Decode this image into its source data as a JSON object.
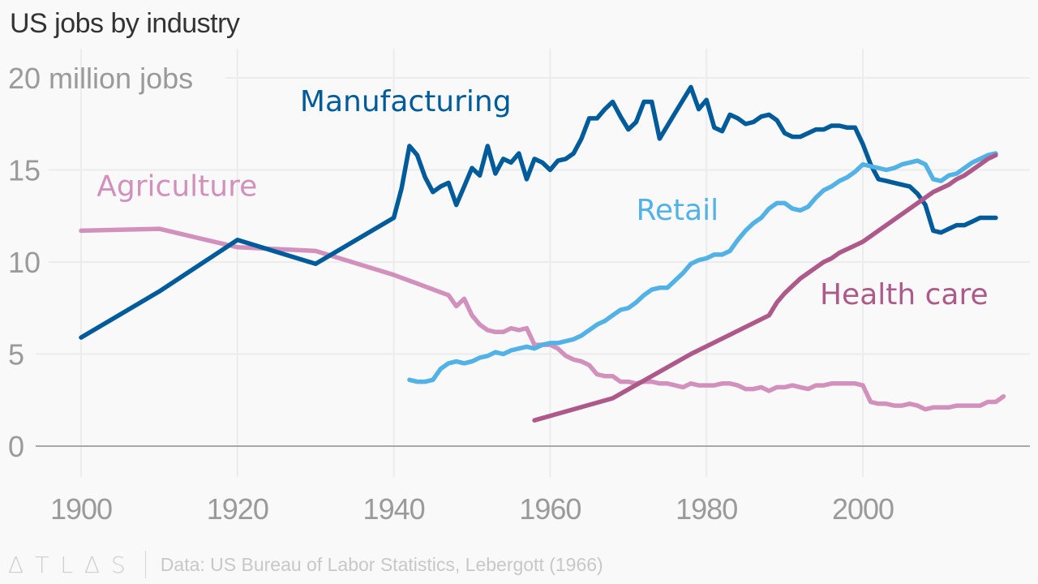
{
  "header": {
    "title": "US jobs by industry"
  },
  "footer": {
    "logo": "ΔTLΔS",
    "source": "Data: US Bureau of Labor Statistics, Lebergott (1966)"
  },
  "chart_data": {
    "type": "line",
    "title": "US jobs by industry",
    "xlabel": "",
    "ylabel": "million jobs",
    "xlim": [
      1899,
      2020
    ],
    "ylim": [
      0,
      20
    ],
    "grid": true,
    "legend": "inline-labels",
    "y_ticks": [
      {
        "value": 0,
        "label": "0"
      },
      {
        "value": 5,
        "label": "5"
      },
      {
        "value": 10,
        "label": "10"
      },
      {
        "value": 15,
        "label": "15"
      },
      {
        "value": 20,
        "label": "20 million jobs"
      }
    ],
    "x_ticks": [
      {
        "value": 1900,
        "label": "1900"
      },
      {
        "value": 1920,
        "label": "1920"
      },
      {
        "value": 1940,
        "label": "1940"
      },
      {
        "value": 1960,
        "label": "1960"
      },
      {
        "value": 1980,
        "label": "1980"
      },
      {
        "value": 2000,
        "label": "2000"
      }
    ],
    "series": [
      {
        "name": "Agriculture",
        "color": "#d291bc",
        "label": {
          "text": "Agriculture",
          "x": 1902,
          "y": 13.6
        },
        "points": [
          [
            1900,
            11.7
          ],
          [
            1910,
            11.8
          ],
          [
            1920,
            10.8
          ],
          [
            1930,
            10.6
          ],
          [
            1940,
            9.3
          ],
          [
            1947,
            8.2
          ],
          [
            1948,
            7.6
          ],
          [
            1949,
            8.0
          ],
          [
            1950,
            7.1
          ],
          [
            1951,
            6.6
          ],
          [
            1952,
            6.3
          ],
          [
            1953,
            6.2
          ],
          [
            1954,
            6.2
          ],
          [
            1955,
            6.4
          ],
          [
            1956,
            6.3
          ],
          [
            1957,
            6.4
          ],
          [
            1958,
            5.5
          ],
          [
            1959,
            5.5
          ],
          [
            1960,
            5.5
          ],
          [
            1961,
            5.3
          ],
          [
            1962,
            4.9
          ],
          [
            1963,
            4.7
          ],
          [
            1964,
            4.6
          ],
          [
            1965,
            4.4
          ],
          [
            1966,
            3.9
          ],
          [
            1967,
            3.8
          ],
          [
            1968,
            3.8
          ],
          [
            1969,
            3.5
          ],
          [
            1970,
            3.5
          ],
          [
            1971,
            3.4
          ],
          [
            1972,
            3.5
          ],
          [
            1973,
            3.5
          ],
          [
            1974,
            3.4
          ],
          [
            1975,
            3.4
          ],
          [
            1976,
            3.3
          ],
          [
            1977,
            3.2
          ],
          [
            1978,
            3.4
          ],
          [
            1979,
            3.3
          ],
          [
            1980,
            3.3
          ],
          [
            1981,
            3.3
          ],
          [
            1982,
            3.4
          ],
          [
            1983,
            3.4
          ],
          [
            1984,
            3.3
          ],
          [
            1985,
            3.1
          ],
          [
            1986,
            3.1
          ],
          [
            1987,
            3.2
          ],
          [
            1988,
            3.0
          ],
          [
            1989,
            3.2
          ],
          [
            1990,
            3.2
          ],
          [
            1991,
            3.3
          ],
          [
            1992,
            3.2
          ],
          [
            1993,
            3.1
          ],
          [
            1994,
            3.3
          ],
          [
            1995,
            3.3
          ],
          [
            1996,
            3.4
          ],
          [
            1997,
            3.4
          ],
          [
            1998,
            3.4
          ],
          [
            1999,
            3.4
          ],
          [
            2000,
            3.3
          ],
          [
            2001,
            2.4
          ],
          [
            2002,
            2.3
          ],
          [
            2003,
            2.3
          ],
          [
            2004,
            2.2
          ],
          [
            2005,
            2.2
          ],
          [
            2006,
            2.3
          ],
          [
            2007,
            2.2
          ],
          [
            2008,
            2.0
          ],
          [
            2009,
            2.1
          ],
          [
            2010,
            2.1
          ],
          [
            2011,
            2.1
          ],
          [
            2012,
            2.2
          ],
          [
            2013,
            2.2
          ],
          [
            2014,
            2.2
          ],
          [
            2015,
            2.2
          ],
          [
            2016,
            2.4
          ],
          [
            2017,
            2.4
          ],
          [
            2018,
            2.7
          ]
        ]
      },
      {
        "name": "Manufacturing",
        "color": "#005b9a",
        "label": {
          "text": "Manufacturing",
          "x": 1928,
          "y": 18.2
        },
        "points": [
          [
            1900,
            5.9
          ],
          [
            1910,
            8.4
          ],
          [
            1920,
            11.2
          ],
          [
            1930,
            9.9
          ],
          [
            1940,
            12.4
          ],
          [
            1941,
            14.0
          ],
          [
            1942,
            16.3
          ],
          [
            1943,
            15.8
          ],
          [
            1944,
            14.6
          ],
          [
            1945,
            13.8
          ],
          [
            1946,
            14.1
          ],
          [
            1947,
            14.3
          ],
          [
            1948,
            13.1
          ],
          [
            1949,
            14.1
          ],
          [
            1950,
            15.1
          ],
          [
            1951,
            14.7
          ],
          [
            1952,
            16.3
          ],
          [
            1953,
            14.8
          ],
          [
            1954,
            15.6
          ],
          [
            1955,
            15.4
          ],
          [
            1956,
            15.9
          ],
          [
            1957,
            14.5
          ],
          [
            1958,
            15.6
          ],
          [
            1959,
            15.4
          ],
          [
            1960,
            15.0
          ],
          [
            1961,
            15.5
          ],
          [
            1962,
            15.6
          ],
          [
            1963,
            15.9
          ],
          [
            1964,
            16.7
          ],
          [
            1965,
            17.8
          ],
          [
            1966,
            17.8
          ],
          [
            1967,
            18.3
          ],
          [
            1968,
            18.7
          ],
          [
            1969,
            17.9
          ],
          [
            1970,
            17.2
          ],
          [
            1971,
            17.6
          ],
          [
            1972,
            18.7
          ],
          [
            1973,
            18.7
          ],
          [
            1974,
            16.7
          ],
          [
            1975,
            17.4
          ],
          [
            1976,
            18.1
          ],
          [
            1977,
            18.8
          ],
          [
            1978,
            19.5
          ],
          [
            1979,
            18.3
          ],
          [
            1980,
            18.8
          ],
          [
            1981,
            17.3
          ],
          [
            1982,
            17.1
          ],
          [
            1983,
            18.0
          ],
          [
            1984,
            17.8
          ],
          [
            1985,
            17.5
          ],
          [
            1986,
            17.6
          ],
          [
            1987,
            17.9
          ],
          [
            1988,
            18.0
          ],
          [
            1989,
            17.7
          ],
          [
            1990,
            17.0
          ],
          [
            1991,
            16.8
          ],
          [
            1992,
            16.8
          ],
          [
            1993,
            17.0
          ],
          [
            1994,
            17.2
          ],
          [
            1995,
            17.2
          ],
          [
            1996,
            17.4
          ],
          [
            1997,
            17.4
          ],
          [
            1998,
            17.3
          ],
          [
            1999,
            17.3
          ],
          [
            2000,
            16.4
          ],
          [
            2001,
            15.3
          ],
          [
            2002,
            14.5
          ],
          [
            2003,
            14.4
          ],
          [
            2004,
            14.3
          ],
          [
            2005,
            14.2
          ],
          [
            2006,
            14.1
          ],
          [
            2007,
            13.7
          ],
          [
            2008,
            13.1
          ],
          [
            2009,
            11.7
          ],
          [
            2010,
            11.6
          ],
          [
            2011,
            11.8
          ],
          [
            2012,
            12.0
          ],
          [
            2013,
            12.0
          ],
          [
            2014,
            12.2
          ],
          [
            2015,
            12.4
          ],
          [
            2016,
            12.4
          ],
          [
            2017,
            12.4
          ]
        ]
      },
      {
        "name": "Retail",
        "color": "#53b2e5",
        "label": {
          "text": "Retail",
          "x": 1971,
          "y": 12.3
        },
        "points": [
          [
            1942,
            3.6
          ],
          [
            1943,
            3.5
          ],
          [
            1944,
            3.5
          ],
          [
            1945,
            3.6
          ],
          [
            1946,
            4.2
          ],
          [
            1947,
            4.5
          ],
          [
            1948,
            4.6
          ],
          [
            1949,
            4.5
          ],
          [
            1950,
            4.6
          ],
          [
            1951,
            4.8
          ],
          [
            1952,
            4.9
          ],
          [
            1953,
            5.1
          ],
          [
            1954,
            5.0
          ],
          [
            1955,
            5.2
          ],
          [
            1956,
            5.3
          ],
          [
            1957,
            5.4
          ],
          [
            1958,
            5.3
          ],
          [
            1959,
            5.5
          ],
          [
            1960,
            5.6
          ],
          [
            1961,
            5.6
          ],
          [
            1962,
            5.7
          ],
          [
            1963,
            5.8
          ],
          [
            1964,
            6.0
          ],
          [
            1965,
            6.3
          ],
          [
            1966,
            6.6
          ],
          [
            1967,
            6.8
          ],
          [
            1968,
            7.1
          ],
          [
            1969,
            7.4
          ],
          [
            1970,
            7.5
          ],
          [
            1971,
            7.8
          ],
          [
            1972,
            8.2
          ],
          [
            1973,
            8.5
          ],
          [
            1974,
            8.6
          ],
          [
            1975,
            8.6
          ],
          [
            1976,
            9.0
          ],
          [
            1977,
            9.4
          ],
          [
            1978,
            9.9
          ],
          [
            1979,
            10.1
          ],
          [
            1980,
            10.2
          ],
          [
            1981,
            10.4
          ],
          [
            1982,
            10.4
          ],
          [
            1983,
            10.6
          ],
          [
            1984,
            11.2
          ],
          [
            1985,
            11.7
          ],
          [
            1986,
            12.1
          ],
          [
            1987,
            12.4
          ],
          [
            1988,
            12.9
          ],
          [
            1989,
            13.2
          ],
          [
            1990,
            13.2
          ],
          [
            1991,
            12.9
          ],
          [
            1992,
            12.8
          ],
          [
            1993,
            13.0
          ],
          [
            1994,
            13.5
          ],
          [
            1995,
            13.9
          ],
          [
            1996,
            14.1
          ],
          [
            1997,
            14.4
          ],
          [
            1998,
            14.6
          ],
          [
            1999,
            14.9
          ],
          [
            2000,
            15.3
          ],
          [
            2001,
            15.2
          ],
          [
            2002,
            15.1
          ],
          [
            2003,
            15.0
          ],
          [
            2004,
            15.1
          ],
          [
            2005,
            15.3
          ],
          [
            2006,
            15.4
          ],
          [
            2007,
            15.5
          ],
          [
            2008,
            15.3
          ],
          [
            2009,
            14.5
          ],
          [
            2010,
            14.4
          ],
          [
            2011,
            14.7
          ],
          [
            2012,
            14.8
          ],
          [
            2013,
            15.1
          ],
          [
            2014,
            15.4
          ],
          [
            2015,
            15.6
          ],
          [
            2016,
            15.8
          ],
          [
            2017,
            15.9
          ]
        ]
      },
      {
        "name": "Health care",
        "color": "#ad5a8b",
        "label": {
          "text": "Health care",
          "x": 1994.5,
          "y": 7.7
        },
        "points": [
          [
            1958,
            1.4
          ],
          [
            1968,
            2.6
          ],
          [
            1978,
            5.0
          ],
          [
            1988,
            7.1
          ],
          [
            1989,
            7.8
          ],
          [
            1990,
            8.3
          ],
          [
            1991,
            8.7
          ],
          [
            1992,
            9.1
          ],
          [
            1993,
            9.4
          ],
          [
            1994,
            9.7
          ],
          [
            1995,
            10.0
          ],
          [
            1996,
            10.2
          ],
          [
            1997,
            10.5
          ],
          [
            1998,
            10.7
          ],
          [
            1999,
            10.9
          ],
          [
            2000,
            11.1
          ],
          [
            2001,
            11.4
          ],
          [
            2002,
            11.7
          ],
          [
            2003,
            12.0
          ],
          [
            2004,
            12.3
          ],
          [
            2005,
            12.6
          ],
          [
            2006,
            12.9
          ],
          [
            2007,
            13.2
          ],
          [
            2008,
            13.5
          ],
          [
            2009,
            13.8
          ],
          [
            2010,
            14.0
          ],
          [
            2011,
            14.2
          ],
          [
            2012,
            14.5
          ],
          [
            2013,
            14.7
          ],
          [
            2014,
            15.0
          ],
          [
            2015,
            15.3
          ],
          [
            2016,
            15.6
          ],
          [
            2017,
            15.8
          ]
        ]
      }
    ]
  }
}
